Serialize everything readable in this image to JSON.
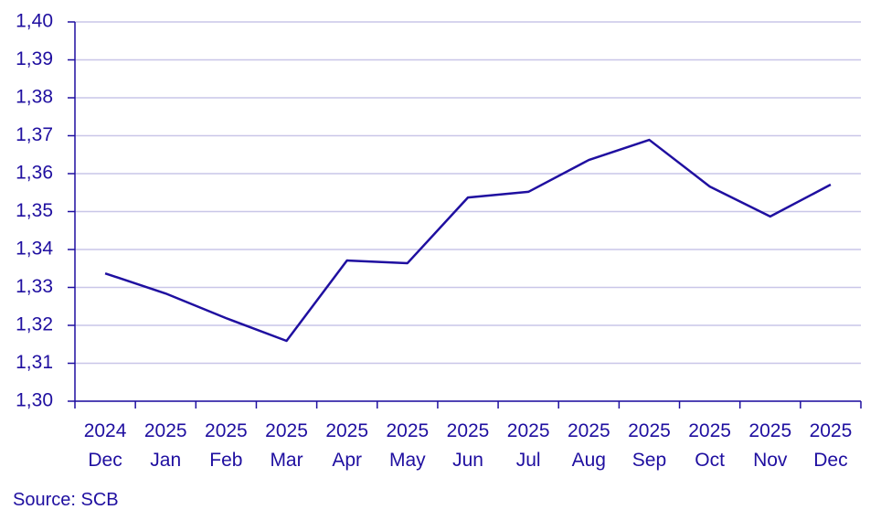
{
  "chart_data": {
    "type": "line",
    "categories": [
      "2024 Dec",
      "2025 Jan",
      "2025 Feb",
      "2025 Mar",
      "2025 Apr",
      "2025 May",
      "2025 Jun",
      "2025 Jul",
      "2025 Aug",
      "2025 Sep",
      "2025 Oct",
      "2025 Nov",
      "2025 Dec"
    ],
    "values": [
      1.3337,
      1.3284,
      1.3219,
      1.3159,
      1.3371,
      1.3364,
      1.3537,
      1.3552,
      1.3636,
      1.3689,
      1.3566,
      1.3487,
      1.3571
    ],
    "color": "#1f0fa0",
    "ylim": [
      1.3,
      1.4
    ],
    "yticks": [
      {
        "value": 1.3,
        "label": "1,30"
      },
      {
        "value": 1.31,
        "label": "1,31"
      },
      {
        "value": 1.32,
        "label": "1,32"
      },
      {
        "value": 1.33,
        "label": "1,33"
      },
      {
        "value": 1.34,
        "label": "1,34"
      },
      {
        "value": 1.35,
        "label": "1,35"
      },
      {
        "value": 1.36,
        "label": "1,36"
      },
      {
        "value": 1.37,
        "label": "1,37"
      },
      {
        "value": 1.38,
        "label": "1,38"
      },
      {
        "value": 1.39,
        "label": "1,39"
      },
      {
        "value": 1.4,
        "label": "1,40"
      }
    ],
    "grid": true,
    "source": "Source: SCB"
  }
}
